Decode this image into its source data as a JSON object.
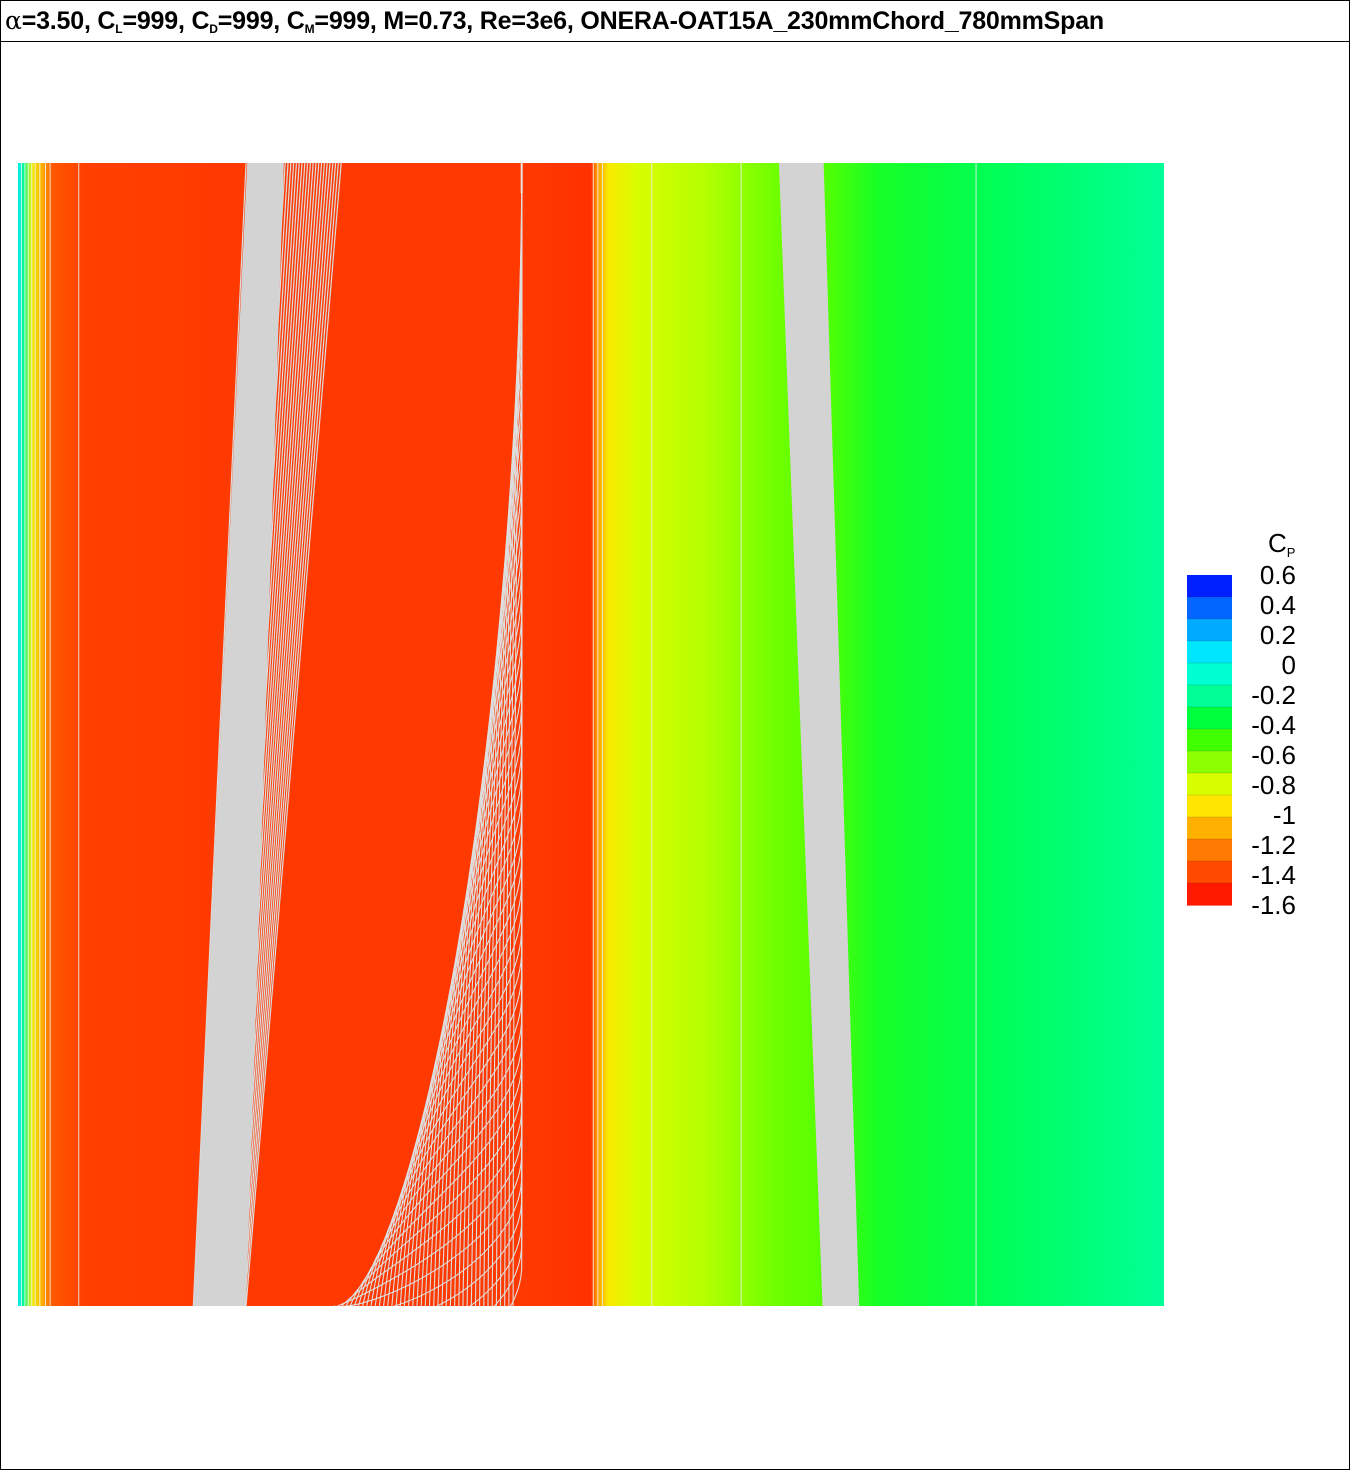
{
  "title": {
    "alpha_symbol": "α",
    "alpha_value": "=3.50, C",
    "cl_sub": "L",
    "cl_value": "=999, C",
    "cd_sub": "D",
    "cd_value": "=999, C",
    "cm_sub": "M",
    "rest": "=999, M=0.73, Re=3e6, ONERA-OAT15A_230mmChord_780mmSpan"
  },
  "chart_data": {
    "type": "heatmap",
    "variable": "C",
    "variable_sub": "P",
    "levels": [
      "0.6",
      "0.4",
      "0.2",
      "0",
      "-0.2",
      "-0.4",
      "-0.6",
      "-0.8",
      "-1",
      "-1.2",
      "-1.4",
      "-1.6"
    ],
    "colorbar": {
      "range": [
        -1.6,
        0.6
      ],
      "colors": [
        "#ff1a00",
        "#ff4a00",
        "#ff7a00",
        "#ffb000",
        "#ffe600",
        "#d8ff00",
        "#8cff00",
        "#40ff00",
        "#00ff3c",
        "#00ff96",
        "#00ffd2",
        "#00e6ff",
        "#00aaff",
        "#0066ff",
        "#0020ff"
      ]
    },
    "field_profile_cp": [
      [
        0.0,
        0.1
      ],
      [
        0.005,
        -0.2
      ],
      [
        0.012,
        -0.9
      ],
      [
        0.02,
        -1.1
      ],
      [
        0.03,
        -1.4
      ],
      [
        0.06,
        -1.48
      ],
      [
        0.2,
        -1.5
      ],
      [
        0.44,
        -1.5
      ],
      [
        0.5,
        -1.52
      ],
      [
        0.505,
        -1.2
      ],
      [
        0.515,
        -0.95
      ],
      [
        0.54,
        -0.82
      ],
      [
        0.6,
        -0.74
      ],
      [
        0.66,
        -0.6
      ],
      [
        0.7,
        -0.55
      ],
      [
        0.75,
        -0.4
      ],
      [
        0.85,
        -0.3
      ],
      [
        1.0,
        -0.18
      ]
    ],
    "streak_lines": true
  }
}
